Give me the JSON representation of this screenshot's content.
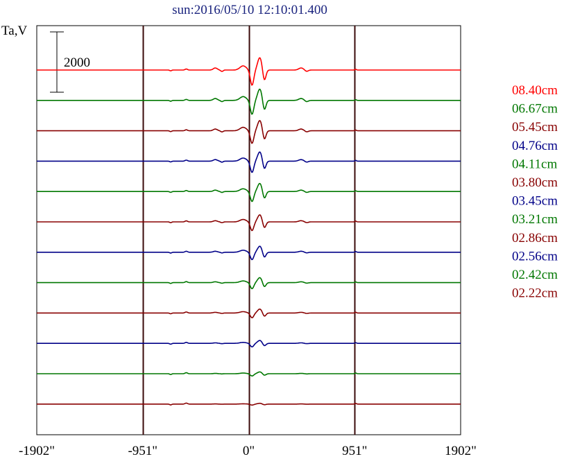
{
  "chart_data": {
    "type": "line",
    "title": "sun:2016/05/10 12:10:01.400",
    "ylabel": "Ta,V",
    "scale_bar_label": "2000",
    "x_ticks": [
      "-1902\"",
      "-951\"",
      "0\"",
      "951\"",
      "1902\""
    ],
    "x_tick_values": [
      -1902,
      -951,
      0,
      951,
      1902
    ],
    "xlim": [
      -1902,
      1902
    ],
    "legend_position": "right",
    "series": [
      {
        "name": "08.40cm",
        "color": "#ff0000"
      },
      {
        "name": "06.67cm",
        "color": "#007700"
      },
      {
        "name": "05.45cm",
        "color": "#880000"
      },
      {
        "name": "04.76cm",
        "color": "#000088"
      },
      {
        "name": "04.11cm",
        "color": "#007700"
      },
      {
        "name": "03.80cm",
        "color": "#880000"
      },
      {
        "name": "03.45cm",
        "color": "#000088"
      },
      {
        "name": "03.21cm",
        "color": "#007700"
      },
      {
        "name": "02.86cm",
        "color": "#880000"
      },
      {
        "name": "02.56cm",
        "color": "#000088"
      },
      {
        "name": "02.42cm",
        "color": "#007700"
      },
      {
        "name": "02.22cm",
        "color": "#880000"
      }
    ]
  }
}
